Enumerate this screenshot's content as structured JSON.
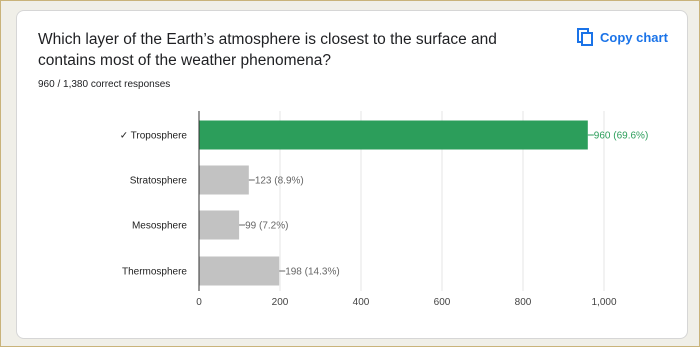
{
  "question": {
    "text": "Which layer of the Earth’s atmosphere is closest to the surface and contains most of the weather phenomena?"
  },
  "summary": {
    "text": "960 / 1,380 correct responses"
  },
  "copy_chart": {
    "label": "Copy chart",
    "icon": "copy-icon",
    "color": "#1a73e8"
  },
  "chart_data": {
    "type": "bar",
    "orientation": "horizontal",
    "categories": [
      "✓ Troposphere",
      "Stratosphere",
      "Mesosphere",
      "Thermosphere"
    ],
    "values": [
      960,
      123,
      99,
      198
    ],
    "data_labels": [
      "960 (69.6%)",
      "123 (8.9%)",
      "99 (7.2%)",
      "198 (14.3%)"
    ],
    "correct_index": 0,
    "colors": {
      "correct": "#2c9e5b",
      "incorrect": "#c2c2c2",
      "correct_label": "#2c9e5b",
      "incorrect_label": "#666666"
    },
    "xlim": [
      0,
      1000
    ],
    "xticks": [
      0,
      200,
      400,
      600,
      800,
      1000
    ],
    "xtick_labels": [
      "0",
      "200",
      "400",
      "600",
      "800",
      "1,000"
    ],
    "grid": true,
    "title": "",
    "xlabel": "",
    "ylabel": ""
  }
}
